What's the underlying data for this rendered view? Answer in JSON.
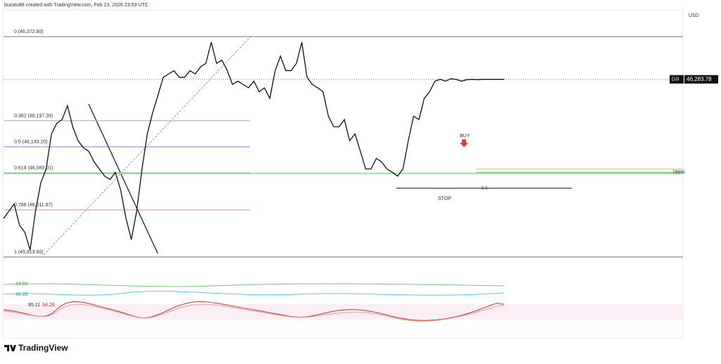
{
  "header": "buzatu88 created with TradingView.com, Feb 23, 2026 23:59 UTC",
  "currency": "USD",
  "footer_logo": "TradingView",
  "chart_data": {
    "type": "line",
    "symbol": "DJI",
    "last_price": {
      "value": 46283.78,
      "label": "46,283.78"
    },
    "color": "#111111",
    "ylim": [
      45913.6,
      46372.8
    ],
    "categories": [
      null,
      null,
      null,
      null,
      null,
      null,
      null,
      null,
      null,
      null,
      null,
      null,
      null,
      null,
      null,
      null,
      null,
      null,
      null,
      null,
      null,
      null,
      null,
      null,
      null,
      null,
      null,
      null,
      null,
      null,
      null,
      null,
      null,
      null,
      null,
      null,
      null,
      null,
      null,
      null,
      null,
      null,
      null,
      null,
      null,
      null,
      null,
      null,
      null,
      null,
      null,
      null,
      null,
      null,
      null,
      null,
      null,
      null,
      null,
      null,
      null,
      null,
      null,
      null,
      null,
      null,
      null,
      null,
      null,
      null,
      null,
      null,
      null,
      null,
      null,
      null,
      null,
      null,
      null,
      null,
      null,
      null,
      null,
      null,
      null,
      null,
      null,
      null,
      null,
      null,
      null,
      null,
      null,
      null,
      null
    ],
    "values": [
      45994,
      46009,
      46024,
      45980,
      45965,
      45928,
      46009,
      46068,
      46097,
      46170,
      46192,
      46200,
      46229,
      46185,
      46156,
      46141,
      46134,
      46112,
      46097,
      46082,
      46075,
      46090,
      46053,
      45994,
      45950,
      46009,
      46097,
      46170,
      46214,
      46251,
      46288,
      46295,
      46302,
      46288,
      46288,
      46302,
      46295,
      46310,
      46317,
      46361,
      46317,
      46324,
      46302,
      46273,
      46280,
      46273,
      46266,
      46280,
      46258,
      46266,
      46244,
      46302,
      46332,
      46302,
      46302,
      46317,
      46361,
      46288,
      46273,
      46266,
      46258,
      46207,
      46185,
      46185,
      46200,
      46156,
      46170,
      46134,
      46097,
      46097,
      46119,
      46112,
      46097,
      46090,
      46082,
      46097,
      46156,
      46207,
      46200,
      46244,
      46258,
      46280,
      46283.78,
      46280,
      46285,
      46283.78,
      46280,
      46283,
      46283.78,
      46283,
      46283.78,
      46283.78,
      46283.78,
      46283.78,
      46283.78
    ],
    "fib_levels": [
      {
        "value": 46372.8,
        "label": "0 (46,372.80)",
        "color": "#444444"
      },
      {
        "value": 46197.39,
        "label": "0.382 (46,197.39)",
        "color": "#f39c12"
      },
      {
        "value": 46143.2,
        "label": "0.5 (46,143.20)",
        "color": "#6c6cc8"
      },
      {
        "value": 46089.01,
        "label": "0.618 (46,089.01)",
        "color": "#4caf50"
      },
      {
        "value": 46011.87,
        "label": "0.786 (46,011.87)",
        "color": "#e06666"
      },
      {
        "value": 45913.6,
        "label": "1 (45,913.60)",
        "color": "#444444"
      }
    ],
    "annotations": {
      "buy": "BUY",
      "stop": "STOP",
      "ratio": "1:1",
      "level": "786%"
    },
    "trade_lines": [
      {
        "value": 46097,
        "color": "#f5b26b"
      },
      {
        "value": 46090,
        "color": "#66bb6a"
      },
      {
        "value": 46057,
        "color": "#111111"
      }
    ],
    "indicators": {
      "adx_label": "44.66",
      "di_label": "48.09",
      "stoch_k": "95.11",
      "stoch_d": "94.26"
    }
  }
}
